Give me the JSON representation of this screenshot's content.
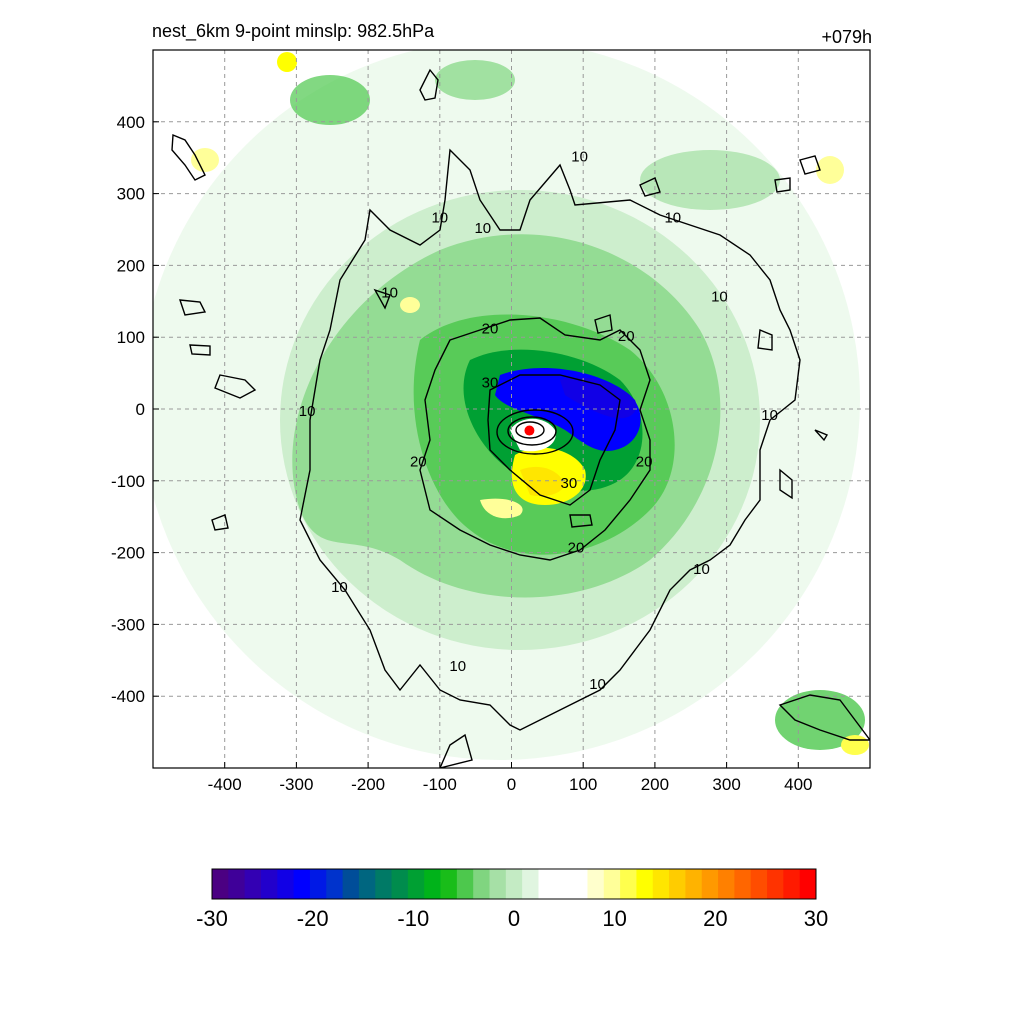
{
  "title_left": "nest_6km  9-point minslp: 982.5hPa",
  "title_right": "+079h",
  "chart_data": {
    "type": "heatmap",
    "x_ticks": [
      -400,
      -300,
      -200,
      -100,
      0,
      100,
      200,
      300,
      400
    ],
    "y_ticks": [
      400,
      300,
      200,
      100,
      0,
      -100,
      -200,
      -300,
      -400
    ],
    "xlim": [
      -500,
      500
    ],
    "ylim": [
      -500,
      500
    ],
    "grid": true,
    "center_marker": {
      "x": 25,
      "y": -30,
      "color": "#ff0000"
    },
    "contour_labels": [
      {
        "text": "10",
        "x": 95,
        "y": 345
      },
      {
        "text": "10",
        "x": -100,
        "y": 260
      },
      {
        "text": "10",
        "x": -40,
        "y": 245
      },
      {
        "text": "10",
        "x": 225,
        "y": 260
      },
      {
        "text": "10",
        "x": 290,
        "y": 150
      },
      {
        "text": "10",
        "x": -170,
        "y": 155
      },
      {
        "text": "10",
        "x": -285,
        "y": -10
      },
      {
        "text": "10",
        "x": 360,
        "y": -15
      },
      {
        "text": "10",
        "x": 265,
        "y": -230
      },
      {
        "text": "10",
        "x": -240,
        "y": -255
      },
      {
        "text": "10",
        "x": -75,
        "y": -365
      },
      {
        "text": "10",
        "x": 120,
        "y": -390
      },
      {
        "text": "20",
        "x": -30,
        "y": 105
      },
      {
        "text": "20",
        "x": 160,
        "y": 95
      },
      {
        "text": "20",
        "x": -130,
        "y": -80
      },
      {
        "text": "20",
        "x": 185,
        "y": -80
      },
      {
        "text": "20",
        "x": 90,
        "y": -200
      },
      {
        "text": "30",
        "x": -30,
        "y": 30
      },
      {
        "text": "30",
        "x": 80,
        "y": -110
      }
    ],
    "colorbar": {
      "ticks": [
        -30,
        -20,
        -10,
        0,
        10,
        20,
        30
      ],
      "range": [
        -30,
        30
      ],
      "colors": [
        "#4b0082",
        "#3f0099",
        "#3300b3",
        "#2200cc",
        "#1100e6",
        "#0000ff",
        "#0019e6",
        "#0033cc",
        "#004d99",
        "#006680",
        "#007a66",
        "#008c4d",
        "#00a033",
        "#00b31a",
        "#19bd19",
        "#4dc84d",
        "#80d580",
        "#a6e0a6",
        "#c4ebc4",
        "#e0f5e0",
        "#ffffff",
        "#ffffff",
        "#ffffff",
        "#ffffcc",
        "#ffff99",
        "#ffff4d",
        "#ffff00",
        "#ffe600",
        "#ffcc00",
        "#ffb300",
        "#ff9900",
        "#ff8000",
        "#ff6600",
        "#ff4d00",
        "#ff3300",
        "#ff1a00",
        "#ff0000"
      ]
    }
  }
}
